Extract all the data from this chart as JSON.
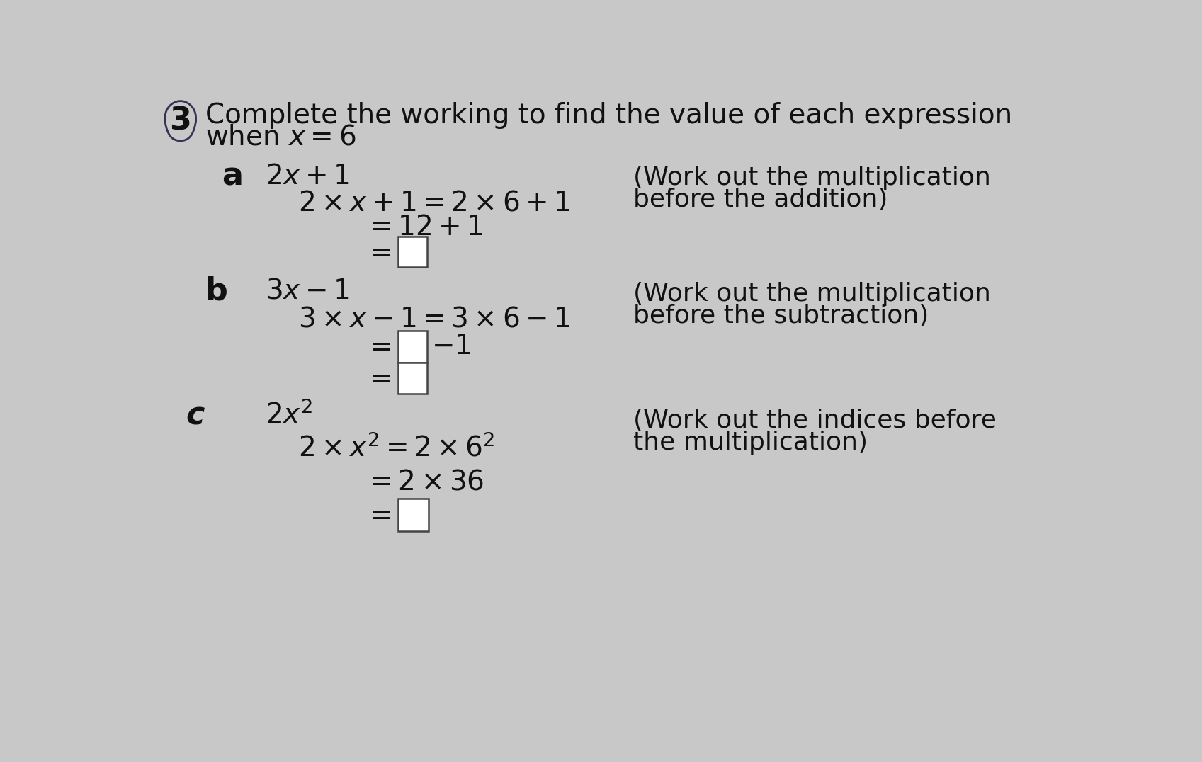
{
  "bg_color": "#c8c8c8",
  "font_color": "#111111",
  "title_fontsize": 28,
  "label_fontsize_bold": 32,
  "body_fontsize": 28,
  "hint_fontsize": 26,
  "question_number": "3",
  "title_line1": "Complete the working to find the value of each expression",
  "title_line2": "when $x=6$",
  "part_a_label": "a",
  "part_a_expr": "$2x+1$",
  "part_a_line1": "$2\\times x+1=2\\times 6+1$",
  "part_a_line2": "$=12+1$",
  "part_a_line3_eq": "$=$",
  "part_a_hint1": "(Work out the multiplication",
  "part_a_hint2": "before the addition)",
  "part_b_label": "b",
  "part_b_expr": "$3x-1$",
  "part_b_line1": "$3\\times x-1=3\\times 6-1$",
  "part_b_line2_eq": "$=$",
  "part_b_line2_suffix": "$-1$",
  "part_b_line3_eq": "$=$",
  "part_b_hint1": "(Work out the multiplication",
  "part_b_hint2": "before the subtraction)",
  "part_c_label": "c",
  "part_c_expr": "$2x^2$",
  "part_c_line1": "$2\\times x^2=2\\times 6^2$",
  "part_c_line2": "$=2\\times 36$",
  "part_c_line3_eq": "$=$",
  "part_c_hint1": "(Work out the indices before",
  "part_c_hint2": "the multiplication)"
}
